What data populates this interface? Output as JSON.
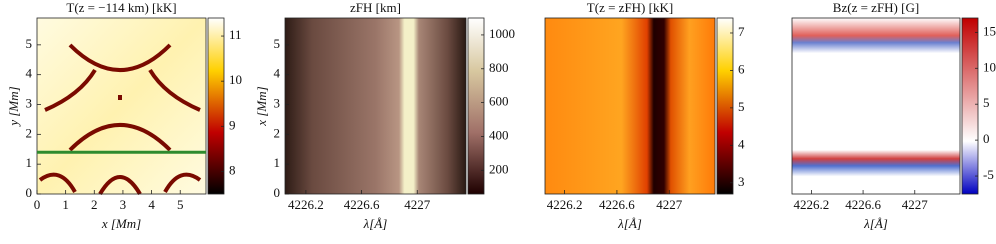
{
  "chart_data": [
    {
      "type": "heatmap",
      "title": "T(z = −114 km) [kK]",
      "xlabel": "x [Mm]",
      "ylabel": "y [Mm]",
      "xlim": [
        0,
        5.9
      ],
      "xticks": [
        0,
        1,
        2,
        3,
        4,
        5
      ],
      "ylim": [
        0,
        5.9
      ],
      "yticks": [
        0,
        1,
        2,
        3,
        4,
        5
      ],
      "clim": [
        7.5,
        11.4
      ],
      "cticks": [
        8,
        9,
        10,
        11
      ],
      "line_y": 1.4,
      "line_color": "#2e8b2e"
    },
    {
      "type": "heatmap",
      "title": "zFH [km]",
      "xlabel": "λ[Å]",
      "ylabel": "x [Mm]",
      "xlim": [
        4226.05,
        4227.35
      ],
      "xticks": [
        4226.2,
        4226.6,
        4227
      ],
      "ylim": [
        0,
        5.9
      ],
      "yticks": [
        0,
        1,
        2,
        3,
        4,
        5
      ],
      "clim": [
        60,
        1100
      ],
      "cticks": [
        200,
        400,
        600,
        800,
        1000
      ]
    },
    {
      "type": "heatmap",
      "title": "T(z = zFH) [kK]",
      "xlabel": "λ[Å]",
      "xlim": [
        4226.05,
        4227.35
      ],
      "xticks": [
        4226.2,
        4226.6,
        4227
      ],
      "clim": [
        2.7,
        7.4
      ],
      "cticks": [
        3,
        4,
        5,
        6,
        7
      ]
    },
    {
      "type": "heatmap",
      "title": "Bz(z = zFH) [G]",
      "xlabel": "λ[Å]",
      "xlim": [
        4226.05,
        4227.35
      ],
      "xticks": [
        4226.2,
        4226.6,
        4227
      ],
      "clim": [
        -7.5,
        17
      ],
      "cticks": [
        -5,
        0,
        5,
        10,
        15
      ]
    }
  ]
}
